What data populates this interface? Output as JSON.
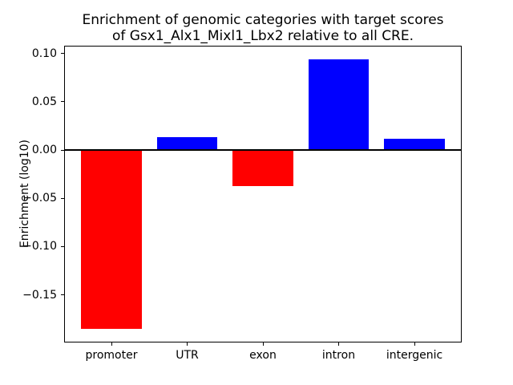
{
  "title": {
    "line1": "Enrichment of genomic categories with target scores",
    "line2": "of Gsx1_Alx1_Mixl1_Lbx2 relative to all CRE."
  },
  "axes": {
    "ylabel": "Enrichment (log10)",
    "xlabel": ""
  },
  "colors": {
    "positive_bar": "#0000ff",
    "negative_bar": "#ff0000",
    "axis": "#000000",
    "background": "#ffffff"
  },
  "chart_data": {
    "type": "bar",
    "title": "Enrichment of genomic categories with target scores\nof Gsx1_Alx1_Mixl1_Lbx2 relative to all CRE.",
    "xlabel": "",
    "ylabel": "Enrichment (log10)",
    "categories": [
      "promoter",
      "UTR",
      "exon",
      "intron",
      "intergenic"
    ],
    "values": [
      -0.185,
      0.013,
      -0.037,
      0.094,
      0.012
    ],
    "bar_colors": [
      "#ff0000",
      "#0000ff",
      "#ff0000",
      "#0000ff",
      "#0000ff"
    ],
    "bar_width": 0.8,
    "yticks": [
      0.1,
      0.05,
      0.0,
      -0.05,
      -0.1,
      -0.15
    ],
    "ytick_labels": [
      "0.10",
      "0.05",
      "0.00",
      "−0.05",
      "−0.10",
      "−0.15"
    ],
    "ylim": [
      -0.1995,
      0.1075
    ],
    "xlim": [
      -0.625,
      4.625
    ],
    "zero_line": true,
    "grid": false,
    "legend": false
  }
}
